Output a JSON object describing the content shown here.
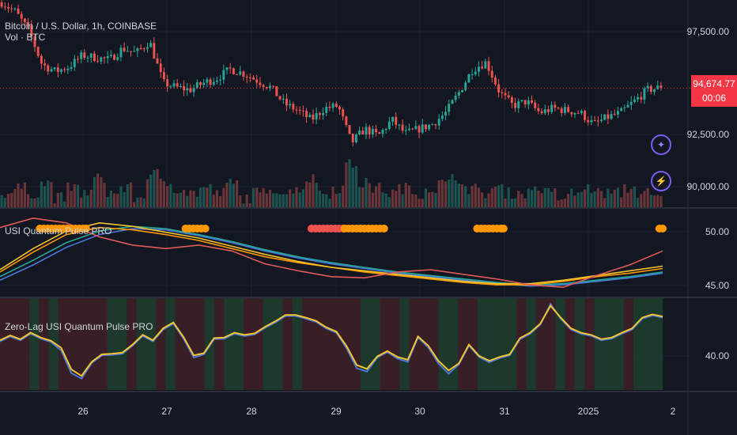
{
  "main": {
    "title": "Bitcoin / U.S. Dollar, 1h, COINBASE",
    "volume_label": "Vol · BTC",
    "price_tag": {
      "price": "94,674.77",
      "countdown": "00:06"
    },
    "y_ticks": [
      "97,500.00",
      "92,500.00",
      "90,000.00"
    ]
  },
  "pane1": {
    "title": "USI Quantum Pulse PRO",
    "y_ticks": [
      "50.00",
      "45.00"
    ]
  },
  "pane2": {
    "title": "Zero-Lag USI Quantum Pulse PRO",
    "y_ticks": [
      "40.00"
    ]
  },
  "x_axis": {
    "labels": [
      "26",
      "27",
      "28",
      "29",
      "30",
      "31",
      "2025",
      "2"
    ]
  },
  "colors": {
    "up": "#26a69a",
    "down": "#ef5350",
    "bg": "#131722",
    "grid": "#1e222d",
    "accent": "#f23645",
    "dot": "#ff9800",
    "purple": "#7b5cf0"
  },
  "icons": [
    "sparkle-icon",
    "lightning-icon"
  ],
  "chart_data": [
    {
      "type": "candlestick",
      "title": "Bitcoin / U.S. Dollar, 1h, COINBASE",
      "ylim": [
        89500,
        98500
      ],
      "y_ticks": [
        97500,
        92500,
        90000
      ],
      "close_path": [
        98400,
        98000,
        97200,
        95700,
        95400,
        95600,
        96100,
        96000,
        95900,
        96400,
        96200,
        96700,
        94900,
        94700,
        94600,
        94900,
        95100,
        95500,
        95300,
        95000,
        94700,
        94000,
        93700,
        93300,
        93800,
        93900,
        92300,
        92900,
        92600,
        93300,
        92700,
        92900,
        93100,
        93600,
        94500,
        95500,
        95800,
        94500,
        93900,
        94100,
        93600,
        93800,
        93700,
        93600,
        93100,
        93400,
        93600,
        94100,
        94600,
        94700
      ],
      "last_price": 94674.77
    },
    {
      "type": "bar",
      "name": "Vol · BTC",
      "values": [
        3,
        4,
        3,
        5,
        2,
        4,
        3,
        6,
        3,
        4,
        2,
        7,
        5,
        4,
        3,
        4,
        3,
        5,
        2,
        3,
        4,
        3,
        4,
        6,
        3,
        4,
        9,
        5,
        4,
        3,
        4,
        3,
        4,
        5,
        6,
        4,
        3,
        4,
        3,
        3,
        4,
        3,
        2,
        3,
        4,
        3,
        3,
        4,
        3,
        2
      ]
    },
    {
      "type": "line",
      "name": "USI Quantum Pulse PRO",
      "ylim": [
        44.3,
        51.8
      ],
      "y_ticks": [
        50,
        45
      ],
      "series": [
        {
          "color": "#e05a5a",
          "values": [
            50.2,
            51.0,
            50.6,
            49.4,
            48.7,
            48.4,
            48.7,
            48.2,
            47.1,
            46.5,
            46.0,
            45.9,
            46.4,
            46.6,
            46.2,
            45.8,
            45.3,
            45.1,
            46.1,
            47.0,
            48.2
          ]
        },
        {
          "color": "#f4c430",
          "values": [
            46.6,
            48.4,
            49.9,
            50.6,
            50.3,
            49.8,
            49.3,
            48.6,
            47.9,
            47.3,
            46.8,
            46.5,
            46.2,
            45.9,
            45.6,
            45.4,
            45.4,
            45.7,
            46.1,
            46.5,
            46.9
          ]
        },
        {
          "color": "#ff9800",
          "values": [
            46.4,
            48.1,
            49.6,
            50.2,
            50.0,
            49.6,
            49.1,
            48.4,
            47.7,
            47.2,
            46.8,
            46.4,
            46.1,
            45.8,
            45.5,
            45.3,
            45.3,
            45.6,
            46.0,
            46.3,
            46.7
          ]
        },
        {
          "color": "#26a69a",
          "values": [
            46.0,
            47.4,
            48.9,
            49.9,
            50.3,
            50.1,
            49.6,
            49.0,
            48.3,
            47.7,
            47.2,
            46.8,
            46.4,
            46.1,
            45.8,
            45.5,
            45.3,
            45.4,
            45.7,
            46.0,
            46.4
          ]
        },
        {
          "color": "#4a78d8",
          "values": [
            45.7,
            47.0,
            48.5,
            49.6,
            50.1,
            50.0,
            49.5,
            48.9,
            48.2,
            47.6,
            47.1,
            46.7,
            46.3,
            46.0,
            45.7,
            45.4,
            45.2,
            45.3,
            45.6,
            45.9,
            46.3
          ]
        }
      ],
      "signal_dots": [
        {
          "from": 0.06,
          "to": 0.13,
          "color": "#ff9800"
        },
        {
          "from": 0.28,
          "to": 0.31,
          "color": "#ff9800"
        },
        {
          "from": 0.47,
          "to": 0.52,
          "color": "#ef5350"
        },
        {
          "from": 0.52,
          "to": 0.58,
          "color": "#ff9800"
        },
        {
          "from": 0.72,
          "to": 0.76,
          "color": "#ff9800"
        },
        {
          "from": 0.995,
          "to": 1.0,
          "color": "#ff9800"
        }
      ]
    },
    {
      "type": "line",
      "name": "Zero-Lag USI Quantum Pulse PRO",
      "ylim": [
        34,
        51
      ],
      "y_ticks": [
        40
      ],
      "series": [
        {
          "color": "#f4c430",
          "values": [
            43.2,
            44.1,
            43.4,
            44.6,
            43.7,
            43.1,
            41.8,
            37.8,
            36.6,
            39.2,
            40.6,
            40.7,
            40.9,
            42.4,
            44.2,
            43.2,
            45.4,
            46.5,
            43.8,
            40.4,
            40.8,
            43.6,
            43.7,
            44.6,
            44.2,
            44.5,
            45.7,
            46.7,
            47.9,
            47.9,
            47.4,
            46.8,
            45.6,
            44.8,
            42.1,
            38.6,
            37.9,
            40.2,
            41.2,
            40.1,
            39.6,
            43.9,
            42.2,
            39.4,
            37.6,
            38.9,
            42.4,
            40.3,
            39.4,
            40.1,
            40.6,
            43.6,
            44.6,
            46.3,
            49.6,
            47.4,
            45.4,
            44.6,
            44.2,
            43.4,
            43.7,
            44.6,
            45.4,
            47.4,
            48.0,
            47.6
          ]
        },
        {
          "color": "#4a78d8",
          "values": [
            43.0,
            43.9,
            43.2,
            44.4,
            43.5,
            42.9,
            41.3,
            37.1,
            36.1,
            39.0,
            40.4,
            40.5,
            40.7,
            42.2,
            44.0,
            43.0,
            45.2,
            46.3,
            43.5,
            40.0,
            40.6,
            43.4,
            43.5,
            44.4,
            44.0,
            44.3,
            45.5,
            46.5,
            47.7,
            47.7,
            47.2,
            46.6,
            45.4,
            44.6,
            41.7,
            38.0,
            37.4,
            40.0,
            41.0,
            39.8,
            39.2,
            43.7,
            41.9,
            38.9,
            37.0,
            38.7,
            42.2,
            40.1,
            39.1,
            39.9,
            40.4,
            43.4,
            44.4,
            46.1,
            49.9,
            47.2,
            45.2,
            44.4,
            44.0,
            43.2,
            43.5,
            44.4,
            45.2,
            47.2,
            47.8,
            47.4
          ]
        }
      ],
      "background_regime": [
        "down",
        "down",
        "down",
        "up",
        "down",
        "up",
        "down",
        "down",
        "down",
        "down",
        "down",
        "up",
        "up",
        "down",
        "up",
        "up",
        "down",
        "up",
        "down",
        "down",
        "down",
        "up",
        "down",
        "up",
        "up",
        "down",
        "down",
        "up",
        "up",
        "down",
        "up",
        "down",
        "down",
        "down",
        "down",
        "down",
        "down",
        "up",
        "up",
        "down",
        "down",
        "up",
        "down",
        "down",
        "down",
        "up",
        "up",
        "down",
        "down",
        "up",
        "up",
        "up",
        "up",
        "down",
        "up",
        "down",
        "down",
        "up",
        "down",
        "up",
        "down",
        "up",
        "up",
        "up",
        "down",
        "up",
        "up",
        "up"
      ]
    }
  ]
}
